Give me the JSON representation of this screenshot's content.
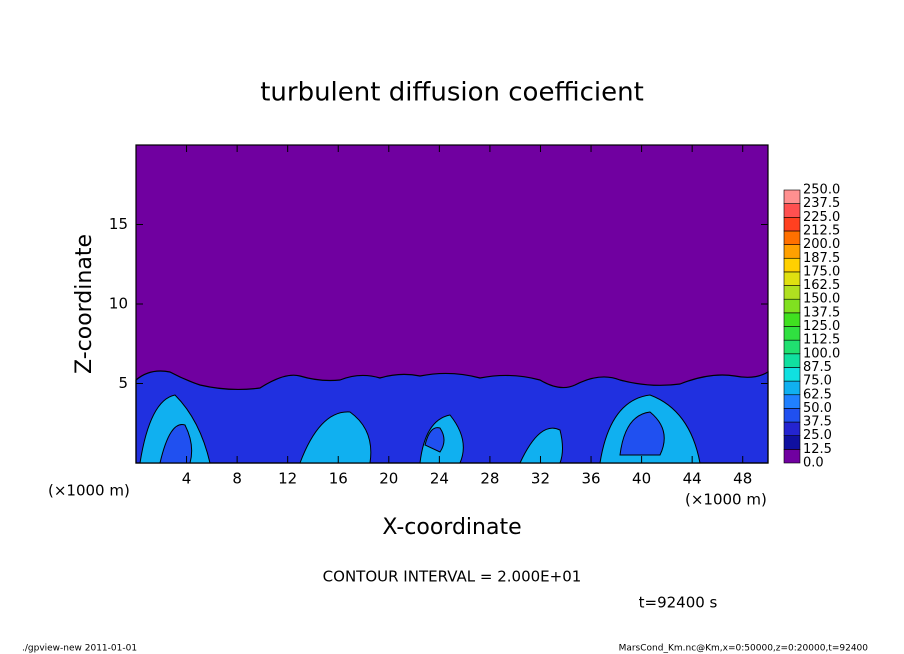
{
  "chart_data": {
    "type": "contour",
    "title": "turbulent diffusion coefficient",
    "xlabel": "X-coordinate",
    "ylabel": "Z-coordinate",
    "xunit": "(×1000 m)",
    "xlim": [
      0,
      50
    ],
    "ylim": [
      0,
      20
    ],
    "xticks": [
      4,
      8,
      12,
      16,
      20,
      24,
      28,
      32,
      36,
      40,
      44,
      48
    ],
    "yticks": [
      5,
      10,
      15
    ],
    "annotations": [
      "CONTOUR INTERVAL = 2.000E+01",
      "t=92400 s"
    ],
    "footer_left": "./gpview-new  2011-01-01",
    "footer_right": "MarsCond_Km.nc@Km,x=0:50000,z=0:20000,t=92400",
    "colorbar": {
      "levels": [
        {
          "value": 0,
          "label": "0.0"
        },
        {
          "value": 12.5,
          "label": "12.5"
        },
        {
          "value": 25,
          "label": "25.0"
        },
        {
          "value": 37.5,
          "label": "37.5"
        },
        {
          "value": 50,
          "label": "50.0"
        },
        {
          "value": 62.5,
          "label": "62.5"
        },
        {
          "value": 75,
          "label": "75.0"
        },
        {
          "value": 87.5,
          "label": "87.5"
        },
        {
          "value": 100,
          "label": "100.0"
        },
        {
          "value": 112.5,
          "label": "112.5"
        },
        {
          "value": 125,
          "label": "125.0"
        },
        {
          "value": 137.5,
          "label": "137.5"
        },
        {
          "value": 150,
          "label": "150.0"
        },
        {
          "value": 162.5,
          "label": "162.5"
        },
        {
          "value": 175,
          "label": "175.0"
        },
        {
          "value": 187.5,
          "label": "187.5"
        },
        {
          "value": 200,
          "label": "200.0"
        },
        {
          "value": 212.5,
          "label": "212.5"
        },
        {
          "value": 225,
          "label": "225.0"
        },
        {
          "value": 237.5,
          "label": "237.5"
        },
        {
          "value": 250,
          "label": "250.0"
        }
      ],
      "colors": [
        "#7000a0",
        "#1010a0",
        "#2424d0",
        "#2050f0",
        "#2080ff",
        "#10b0f0",
        "#10e0e0",
        "#10e0a0",
        "#20e070",
        "#30e040",
        "#40e020",
        "#80e020",
        "#b0e020",
        "#e0e010",
        "#ffd000",
        "#ffa000",
        "#ff7000",
        "#ff4020",
        "#ff5050",
        "#ff9090"
      ]
    }
  }
}
